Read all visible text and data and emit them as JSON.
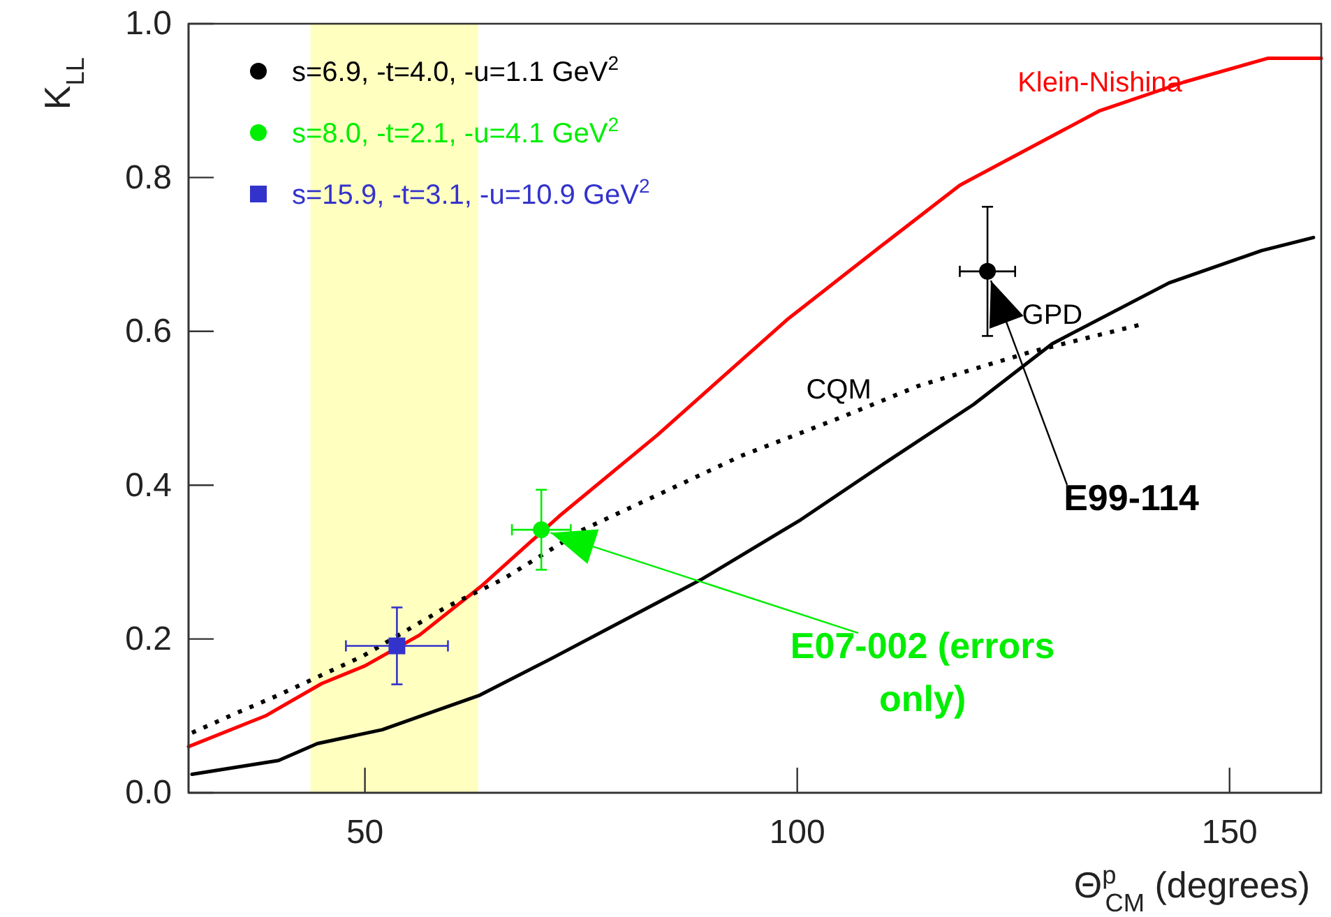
{
  "chart_data": {
    "type": "line",
    "xlabel": "Θ$^{p}$$_{CM}$ (degrees)",
    "ylabel": "K$_{LL}$",
    "xlim": [
      29.6,
      160.6
    ],
    "ylim": [
      0,
      1
    ],
    "xticks": [
      50,
      100,
      150
    ],
    "yticks": [
      {
        "value": 0,
        "label": "0.0"
      },
      {
        "value": 0.2,
        "label": "0.2"
      },
      {
        "value": 0.4,
        "label": "0.4"
      },
      {
        "value": 0.6,
        "label": "0.6"
      },
      {
        "value": 0.8,
        "label": "0.8"
      },
      {
        "value": 1,
        "label": "1.0"
      }
    ],
    "grid": false,
    "legend": "top left",
    "bands": [
      {
        "axis": "x",
        "from": 43.7,
        "to": 63.1,
        "color": "#ffffc0"
      }
    ],
    "series": [
      {
        "name": "Klein-Nishina",
        "type": "line",
        "color": "#ff0000",
        "marker": "none",
        "line_style": "solid",
        "x": [
          29.6,
          38.5,
          45,
          50,
          56.3,
          63.6,
          72.5,
          83.8,
          98.8,
          109.6,
          118.8,
          135,
          144.7,
          154.4,
          160.6
        ],
        "values": [
          0.06,
          0.1,
          0.142,
          0.165,
          0.205,
          0.27,
          0.36,
          0.465,
          0.615,
          0.71,
          0.79,
          0.887,
          0.924,
          0.955,
          0.955
        ]
      },
      {
        "name": "CQM",
        "type": "line",
        "color": "#000000",
        "marker": "none",
        "line_style": "dotted",
        "x": [
          30,
          34.8,
          40,
          49.8,
          59.5,
          66,
          75.2,
          83.8,
          93.5,
          104.8,
          114,
          126.9,
          139.8
        ],
        "values": [
          0.078,
          0.102,
          0.127,
          0.178,
          0.242,
          0.278,
          0.342,
          0.387,
          0.438,
          0.487,
          0.529,
          0.573,
          0.609
        ]
      },
      {
        "name": "GPD",
        "type": "line",
        "color": "#000000",
        "marker": "none",
        "line_style": "solid",
        "x": [
          30,
          40,
          44.5,
          52,
          63.3,
          71.3,
          83.8,
          89,
          100.4,
          110.7,
          120.4,
          129.5,
          143,
          153.7,
          159.7
        ],
        "values": [
          0.024,
          0.042,
          0.064,
          0.082,
          0.127,
          0.173,
          0.247,
          0.278,
          0.355,
          0.433,
          0.505,
          0.584,
          0.663,
          0.705,
          0.722
        ]
      },
      {
        "name": "s=6.9, -t=4.0, -u=1.1 GeV$^{2}$",
        "type": "scatter",
        "color": "#000000",
        "marker": "circle",
        "x": [
          122
        ],
        "values": [
          0.678
        ],
        "errors": [
          0.084
        ],
        "xerrors": [
          3.2
        ]
      },
      {
        "name": "s=8.0, -t=2.1, -u=4.1 GeV$^{2}$",
        "type": "scatter",
        "color": "#00ee00",
        "marker": "circle",
        "x": [
          70.4
        ],
        "values": [
          0.342
        ],
        "errors": [
          0.052
        ],
        "xerrors": [
          3.4
        ]
      },
      {
        "name": "s=15.9, -t=3.1, -u=10.9 GeV$^{2}$",
        "type": "scatter",
        "color": "#3333cc",
        "marker": "square",
        "x": [
          53.7
        ],
        "values": [
          0.191
        ],
        "errors": [
          0.05
        ],
        "xerrors": [
          5.9
        ]
      }
    ],
    "annotations": [
      {
        "text": "E99-114",
        "x": 122,
        "y": 0.678
      },
      {
        "text": "E07-002 (errors\nonly)",
        "x": 70.4,
        "y": 0.342
      }
    ]
  }
}
